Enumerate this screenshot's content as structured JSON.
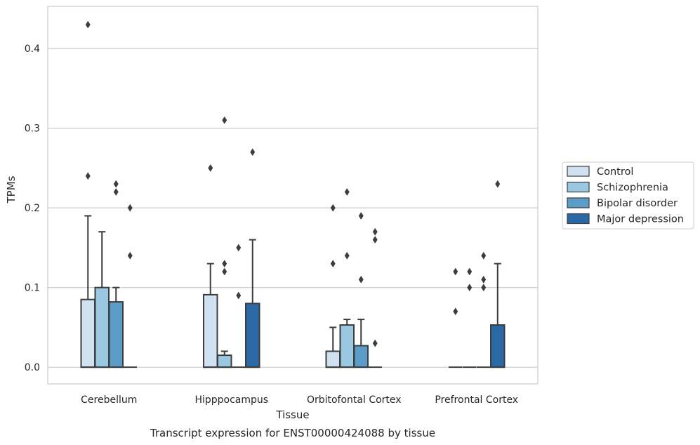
{
  "chart_data": {
    "type": "box",
    "title": "",
    "caption": "Transcript expression for ENST00000424088 by tissue",
    "xlabel": "Tissue",
    "ylabel": "TPMs",
    "ylim": [
      -0.021,
      0.453
    ],
    "yticks": [
      "0.0",
      "0.1",
      "0.2",
      "0.3",
      "0.4"
    ],
    "ytick_values": [
      0.0,
      0.1,
      0.2,
      0.3,
      0.4
    ],
    "grid": "horizontal",
    "legend_position": "right",
    "categories": [
      "Cerebellum",
      "Hipppocampus",
      "Orbitofontal Cortex",
      "Prefrontal Cortex"
    ],
    "series": [
      {
        "name": "Control",
        "color": "#d0e1f1",
        "boxes": [
          {
            "q1": 0.0,
            "median": 0.0,
            "q3": 0.085,
            "whisker_low": 0.0,
            "whisker_high": 0.19,
            "outliers": [
              0.43,
              0.24
            ]
          },
          {
            "q1": 0.0,
            "median": 0.0,
            "q3": 0.091,
            "whisker_low": 0.0,
            "whisker_high": 0.13,
            "outliers": [
              0.25
            ]
          },
          {
            "q1": 0.0,
            "median": 0.0,
            "q3": 0.02,
            "whisker_low": 0.0,
            "whisker_high": 0.05,
            "outliers": [
              0.2,
              0.13
            ]
          },
          {
            "q1": 0.0,
            "median": 0.0,
            "q3": 0.0,
            "whisker_low": 0.0,
            "whisker_high": 0.0,
            "outliers": [
              0.12,
              0.07
            ]
          }
        ]
      },
      {
        "name": "Schizophrenia",
        "color": "#9ac8e0",
        "boxes": [
          {
            "q1": 0.0,
            "median": 0.0,
            "q3": 0.1,
            "whisker_low": 0.0,
            "whisker_high": 0.17,
            "outliers": []
          },
          {
            "q1": 0.0,
            "median": 0.0,
            "q3": 0.015,
            "whisker_low": 0.0,
            "whisker_high": 0.02,
            "outliers": [
              0.31,
              0.13,
              0.12
            ]
          },
          {
            "q1": 0.0,
            "median": 0.0,
            "q3": 0.053,
            "whisker_low": 0.0,
            "whisker_high": 0.06,
            "outliers": [
              0.22,
              0.14
            ]
          },
          {
            "q1": 0.0,
            "median": 0.0,
            "q3": 0.0,
            "whisker_low": 0.0,
            "whisker_high": 0.0,
            "outliers": [
              0.12,
              0.1
            ]
          }
        ]
      },
      {
        "name": "Bipolar disorder",
        "color": "#5b9cc9",
        "boxes": [
          {
            "q1": 0.0,
            "median": 0.0,
            "q3": 0.082,
            "whisker_low": 0.0,
            "whisker_high": 0.1,
            "outliers": [
              0.23,
              0.22
            ]
          },
          {
            "q1": 0.0,
            "median": 0.0,
            "q3": 0.0,
            "whisker_low": 0.0,
            "whisker_high": 0.0,
            "outliers": [
              0.15,
              0.09
            ]
          },
          {
            "q1": 0.0,
            "median": 0.0,
            "q3": 0.027,
            "whisker_low": 0.0,
            "whisker_high": 0.06,
            "outliers": [
              0.19,
              0.11
            ]
          },
          {
            "q1": 0.0,
            "median": 0.0,
            "q3": 0.0,
            "whisker_low": 0.0,
            "whisker_high": 0.0,
            "outliers": [
              0.14,
              0.11,
              0.1
            ]
          }
        ]
      },
      {
        "name": "Major depression",
        "color": "#2a68a6",
        "boxes": [
          {
            "q1": 0.0,
            "median": 0.0,
            "q3": 0.0,
            "whisker_low": 0.0,
            "whisker_high": 0.0,
            "outliers": [
              0.2,
              0.14
            ]
          },
          {
            "q1": 0.0,
            "median": 0.0,
            "q3": 0.08,
            "whisker_low": 0.0,
            "whisker_high": 0.16,
            "outliers": [
              0.27
            ]
          },
          {
            "q1": 0.0,
            "median": 0.0,
            "q3": 0.0,
            "whisker_low": 0.0,
            "whisker_high": 0.0,
            "outliers": [
              0.17,
              0.16,
              0.03
            ]
          },
          {
            "q1": 0.0,
            "median": 0.0,
            "q3": 0.053,
            "whisker_low": 0.0,
            "whisker_high": 0.13,
            "outliers": [
              0.23
            ]
          }
        ]
      }
    ]
  }
}
